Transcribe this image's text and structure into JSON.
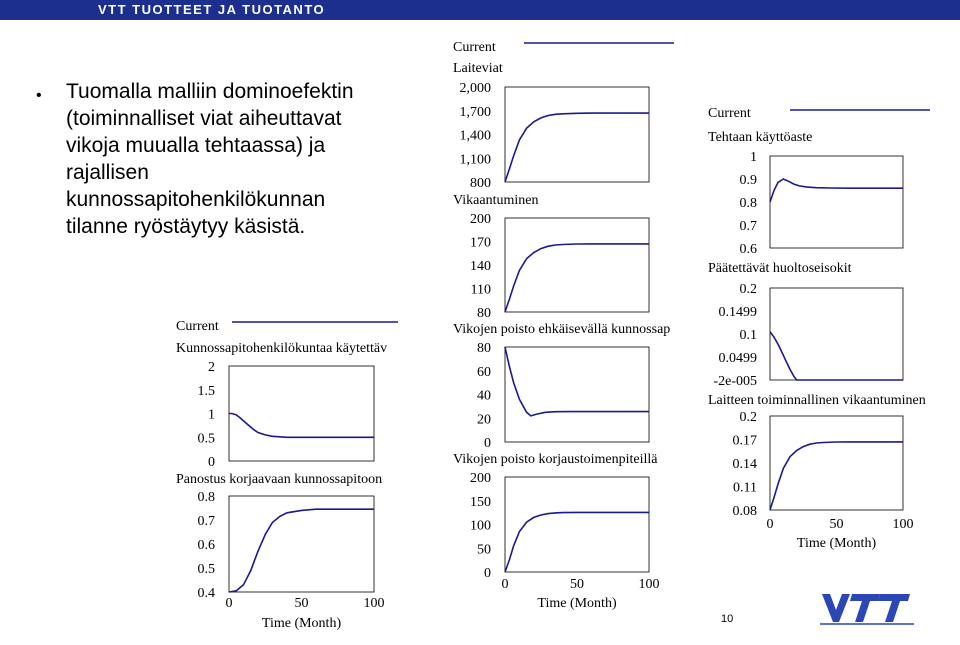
{
  "header": {
    "title": "VTT TUOTTEET JA TUOTANTO"
  },
  "intro": {
    "lines": [
      "Tuomalla malliin dominoefektin",
      "(toiminnalliset viat aiheuttavat",
      "vikoja muualla tehtaassa) ja",
      "rajallisen",
      "kunnossapitohenkilökunnan",
      "tilanne ryöstäytyy käsistä."
    ]
  },
  "page_number": "10",
  "logo": {
    "icon": "vtt-logo",
    "text": "VTT"
  },
  "colors": {
    "topbar": "#1c2f8f",
    "curve": "#1a1a8c"
  },
  "chart_data": [
    {
      "id": "left",
      "type": "line",
      "legend": "Current",
      "xlabel": "Time (Month)",
      "x_ticks": [
        "0",
        "50",
        "100"
      ],
      "xlim": [
        0,
        100
      ],
      "panels": [
        {
          "title": "Kunnossapitohenkilökuntaa käytettäv",
          "y_ticks": [
            "2",
            "1.5",
            "1",
            "0.5",
            "0"
          ],
          "ylim": [
            0,
            2
          ],
          "x": [
            0,
            2,
            5,
            8,
            11,
            14,
            17,
            20,
            25,
            30,
            40,
            50,
            60,
            80,
            100
          ],
          "values": [
            1.0,
            1.0,
            0.97,
            0.9,
            0.82,
            0.74,
            0.66,
            0.6,
            0.55,
            0.52,
            0.5,
            0.5,
            0.5,
            0.5,
            0.5
          ]
        },
        {
          "title": "Panostus korjaavaan kunnossapitoon",
          "y_ticks": [
            "0.8",
            "0.7",
            "0.6",
            "0.5",
            "0.4"
          ],
          "ylim": [
            0.4,
            0.8
          ],
          "x": [
            0,
            5,
            10,
            15,
            20,
            25,
            30,
            35,
            40,
            50,
            60,
            70,
            80,
            100
          ],
          "values": [
            0.4,
            0.405,
            0.43,
            0.49,
            0.57,
            0.64,
            0.69,
            0.715,
            0.73,
            0.74,
            0.745,
            0.745,
            0.745,
            0.745
          ]
        }
      ]
    },
    {
      "id": "middle",
      "type": "line",
      "legend": "Current",
      "xlabel": "Time (Month)",
      "x_ticks": [
        "0",
        "50",
        "100"
      ],
      "xlim": [
        0,
        100
      ],
      "panels": [
        {
          "title": "Laiteviat",
          "y_ticks": [
            "2,000",
            "1,700",
            "1,400",
            "1,100",
            "800"
          ],
          "ylim": [
            800,
            2000
          ],
          "x": [
            0,
            3,
            6,
            10,
            15,
            20,
            25,
            30,
            35,
            40,
            50,
            60,
            80,
            100
          ],
          "values": [
            800,
            960,
            1130,
            1330,
            1480,
            1560,
            1610,
            1640,
            1655,
            1662,
            1668,
            1670,
            1670,
            1670
          ]
        },
        {
          "title": "Vikaantuminen",
          "y_ticks": [
            "200",
            "170",
            "140",
            "110",
            "80"
          ],
          "ylim": [
            80,
            200
          ],
          "x": [
            0,
            3,
            6,
            10,
            15,
            20,
            25,
            30,
            35,
            40,
            50,
            60,
            80,
            100
          ],
          "values": [
            80,
            96,
            113,
            133,
            148,
            156,
            161,
            164,
            165.5,
            166.2,
            166.8,
            167,
            167,
            167
          ]
        },
        {
          "title": "Vikojen poisto ehkäisevällä kunnossap",
          "y_ticks": [
            "80",
            "60",
            "40",
            "20",
            "0"
          ],
          "ylim": [
            0,
            80
          ],
          "x": [
            0,
            3,
            6,
            10,
            15,
            18,
            22,
            28,
            35,
            45,
            60,
            80,
            100
          ],
          "values": [
            80,
            64,
            50,
            36,
            25,
            22,
            23.5,
            25,
            25.5,
            25.6,
            25.6,
            25.6,
            25.6
          ]
        },
        {
          "title": "Vikojen poisto korjaustoimenpiteillä",
          "y_ticks": [
            "200",
            "150",
            "100",
            "50",
            "0"
          ],
          "ylim": [
            0,
            200
          ],
          "x": [
            0,
            3,
            6,
            10,
            15,
            20,
            25,
            30,
            35,
            40,
            50,
            60,
            80,
            100
          ],
          "values": [
            0,
            25,
            55,
            85,
            105,
            115,
            120,
            123,
            124.5,
            125,
            125.5,
            125.5,
            125.5,
            125.5
          ]
        }
      ]
    },
    {
      "id": "right",
      "type": "line",
      "legend": "Current",
      "xlabel": "Time (Month)",
      "x_ticks": [
        "0",
        "50",
        "100"
      ],
      "xlim": [
        0,
        100
      ],
      "panels": [
        {
          "title": "Tehtaan käyttöaste",
          "y_ticks": [
            "1",
            "0.9",
            "0.8",
            "0.7",
            "0.6"
          ],
          "ylim": [
            0.6,
            1.0
          ],
          "x": [
            0,
            3,
            6,
            10,
            14,
            18,
            22,
            28,
            35,
            45,
            60,
            80,
            100
          ],
          "values": [
            0.8,
            0.85,
            0.885,
            0.9,
            0.89,
            0.878,
            0.87,
            0.865,
            0.862,
            0.861,
            0.86,
            0.86,
            0.86
          ]
        },
        {
          "title": "Päätettävät huoltoseisokit",
          "y_ticks": [
            "0.2",
            "0.1499",
            "0.1",
            "0.0499",
            "-2e-005"
          ],
          "ylim": [
            0,
            0.2
          ],
          "x": [
            0,
            3,
            6,
            9,
            12,
            15,
            18,
            20,
            25,
            40,
            60,
            80,
            100
          ],
          "values": [
            0.105,
            0.093,
            0.078,
            0.06,
            0.041,
            0.023,
            0.008,
            0.0,
            0.0,
            0.0,
            0.0,
            0.0,
            0.0
          ]
        },
        {
          "title": "Laitteen toiminnallinen vikaantuminen",
          "y_ticks": [
            "0.2",
            "0.17",
            "0.14",
            "0.11",
            "0.08"
          ],
          "ylim": [
            0.08,
            0.2
          ],
          "x": [
            0,
            3,
            6,
            10,
            15,
            20,
            25,
            30,
            35,
            40,
            50,
            60,
            80,
            100
          ],
          "values": [
            0.08,
            0.096,
            0.113,
            0.133,
            0.148,
            0.156,
            0.161,
            0.164,
            0.1655,
            0.1662,
            0.1668,
            0.167,
            0.167,
            0.167
          ]
        }
      ]
    }
  ]
}
